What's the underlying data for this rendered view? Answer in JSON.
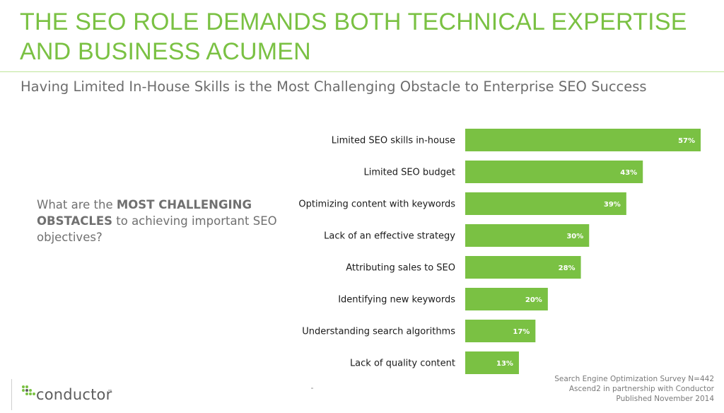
{
  "headline": "THE SEO ROLE DEMANDS BOTH TECHNICAL EXPERTISE AND BUSINESS ACUMEN",
  "subheadline": "Having Limited In-House Skills is the Most Challenging Obstacle to Enterprise SEO Success",
  "question": {
    "prefix": "What are the ",
    "bold": "MOST CHALLENGING OBSTACLES",
    "suffix": " to achieving important SEO objectives?"
  },
  "source": {
    "line1": "Search Engine Optimization Survey N=442",
    "line2": "Ascend2 in partnership with Conductor",
    "line3": "Published November 2014"
  },
  "logo": {
    "text": "conductor",
    "tm": "™",
    "icon": "conductor-logo-dots-icon"
  },
  "colors": {
    "accent": "#7ac143",
    "bar": "#7ac143",
    "text": "#1a1a1a",
    "muted": "#707070"
  },
  "chart_data": {
    "type": "bar",
    "orientation": "horizontal",
    "categories": [
      "Limited SEO skills in-house",
      "Limited SEO budget",
      "Optimizing content with keywords",
      "Lack of an effective strategy",
      "Attributing sales to SEO",
      "Identifying new keywords",
      "Understanding search algorithms",
      "Lack of quality content"
    ],
    "values": [
      57,
      43,
      39,
      30,
      28,
      20,
      17,
      13
    ],
    "value_labels": [
      "57%",
      "43%",
      "39%",
      "30%",
      "28%",
      "20%",
      "17%",
      "13%"
    ],
    "unit": "%",
    "xlim": [
      0,
      57
    ],
    "grid": false,
    "legend": "none"
  }
}
